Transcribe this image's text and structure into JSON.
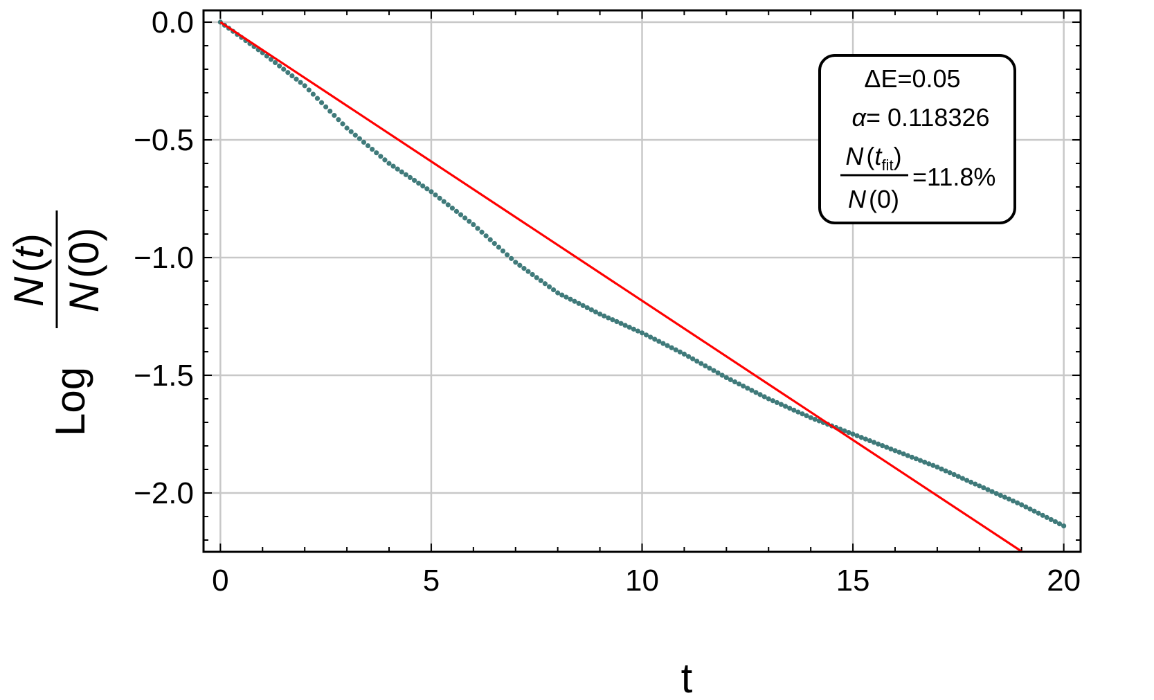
{
  "chart_data": {
    "type": "scatter",
    "xlabel": "t",
    "ylabel": {
      "prefix": "Log",
      "numerator": {
        "fn": "N",
        "arg": "t"
      },
      "denominator": {
        "fn": "N",
        "arg": "0"
      }
    },
    "xlim": [
      -0.4,
      20.4
    ],
    "ylim": [
      -2.25,
      0.05
    ],
    "x_ticks": [
      0,
      5,
      10,
      15,
      20
    ],
    "x_tick_labels": [
      "0",
      "5",
      "10",
      "15",
      "20"
    ],
    "y_ticks": [
      0.0,
      -0.5,
      -1.0,
      -1.5,
      -2.0
    ],
    "y_tick_labels": [
      "0.0",
      "−0.5",
      "−1.0",
      "−1.5",
      "−2.0"
    ],
    "grid": true,
    "series": [
      {
        "kind": "points",
        "color": "#3f7a7a",
        "x_range": [
          0,
          20
        ],
        "step": 0.1,
        "anchors": [
          [
            0,
            0.0
          ],
          [
            1,
            -0.13
          ],
          [
            2,
            -0.27
          ],
          [
            3,
            -0.45
          ],
          [
            4,
            -0.6
          ],
          [
            5,
            -0.72
          ],
          [
            6,
            -0.86
          ],
          [
            7,
            -1.02
          ],
          [
            8,
            -1.15
          ],
          [
            9,
            -1.24
          ],
          [
            10,
            -1.32
          ],
          [
            11,
            -1.41
          ],
          [
            12,
            -1.51
          ],
          [
            13,
            -1.6
          ],
          [
            14,
            -1.68
          ],
          [
            15,
            -1.75
          ],
          [
            16,
            -1.82
          ],
          [
            17,
            -1.89
          ],
          [
            18,
            -1.97
          ],
          [
            19,
            -2.05
          ],
          [
            20,
            -2.14
          ]
        ]
      },
      {
        "kind": "fit-line",
        "color": "#ff0000",
        "slope": -0.118326,
        "intercept": 0.0,
        "x_range": [
          0,
          20.4
        ]
      }
    ],
    "annotation": {
      "line1_prefix": "ΔE=",
      "line1_value": "0.05",
      "alpha_symbol": "α",
      "alpha_value": "= 0.118326",
      "frac_num_fn": "N",
      "frac_num_arg": "t",
      "frac_num_sub": "fit",
      "frac_den_fn": "N",
      "frac_den_arg": "0",
      "frac_value": "=11.8%"
    }
  }
}
